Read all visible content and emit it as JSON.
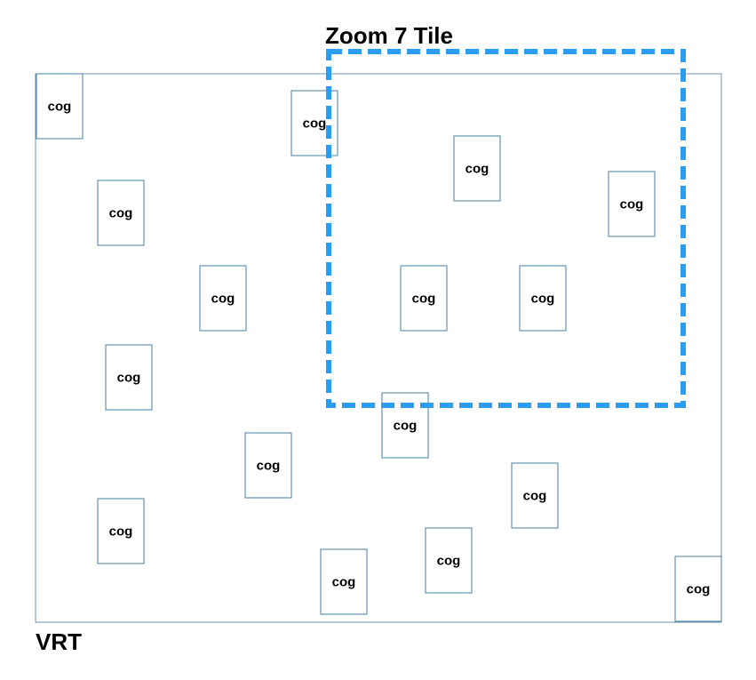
{
  "vrt": {
    "label": "VRT",
    "border_color": "#6b90a8"
  },
  "zoom_tile": {
    "label": "Zoom 7 Tile",
    "border_color": "#2a9df0"
  },
  "cogs": [
    {
      "label": "cog"
    },
    {
      "label": "cog"
    },
    {
      "label": "cog"
    },
    {
      "label": "cog"
    },
    {
      "label": "cog"
    },
    {
      "label": "cog"
    },
    {
      "label": "cog"
    },
    {
      "label": "cog"
    },
    {
      "label": "cog"
    },
    {
      "label": "cog"
    },
    {
      "label": "cog"
    },
    {
      "label": "cog"
    },
    {
      "label": "cog"
    },
    {
      "label": "cog"
    },
    {
      "label": "cog"
    },
    {
      "label": "cog"
    },
    {
      "label": ""
    }
  ],
  "cog_border_color": "#4a7ea3"
}
